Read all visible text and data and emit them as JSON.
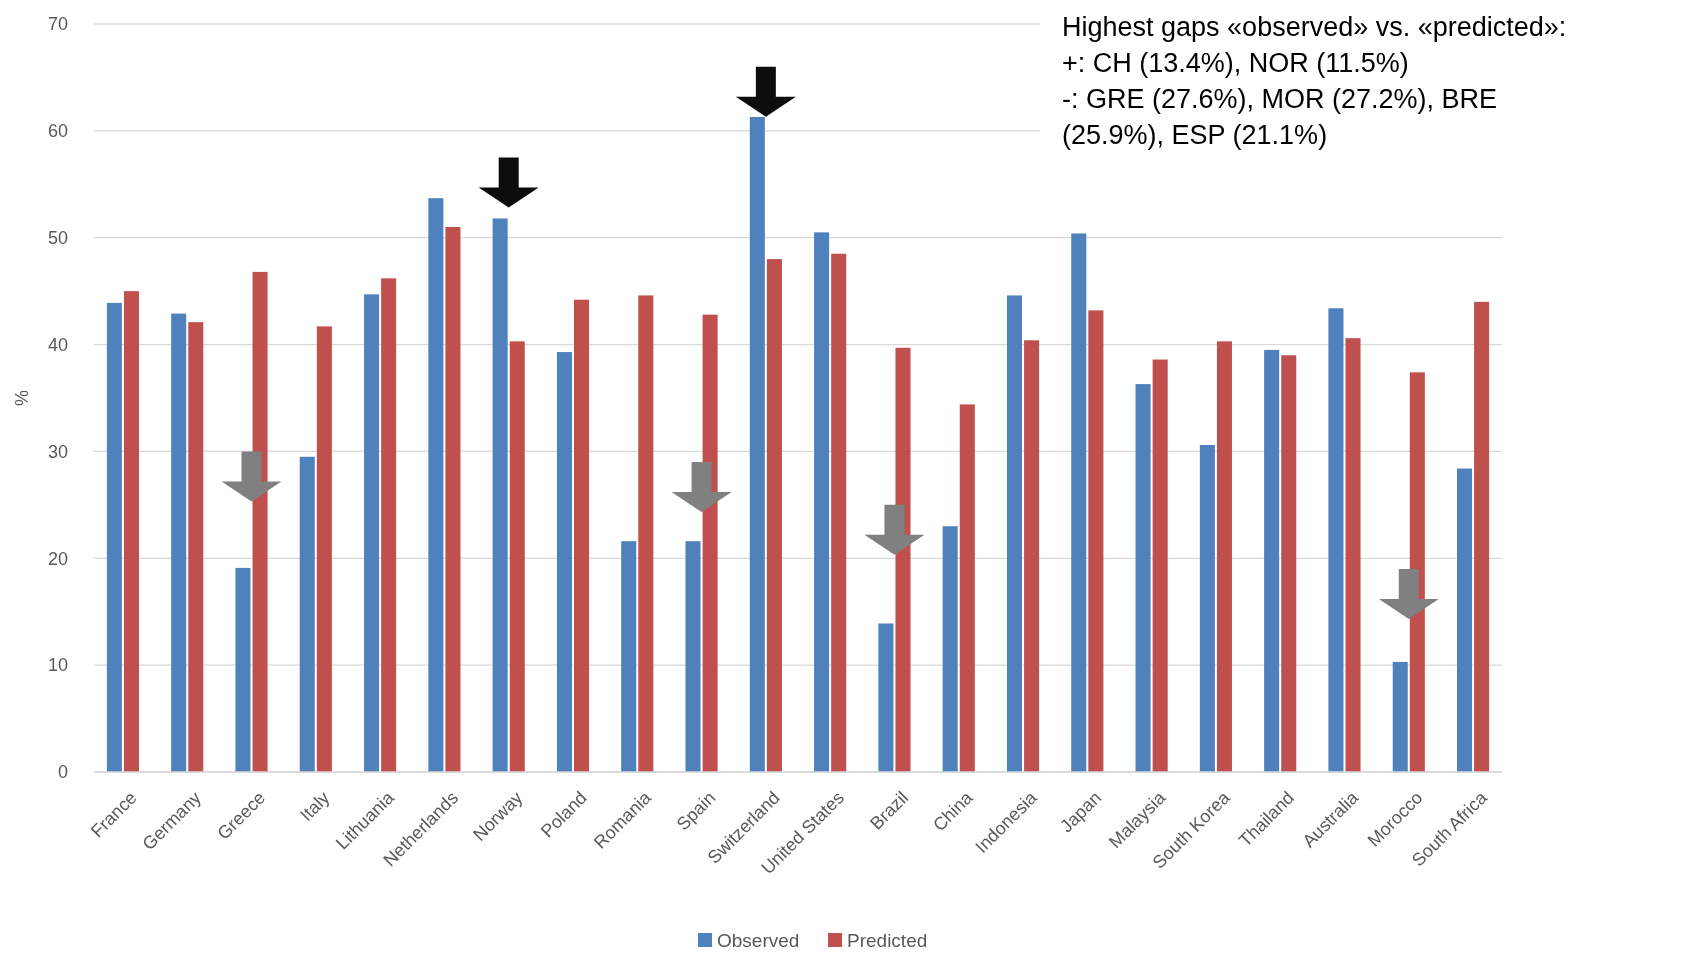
{
  "chart_data": {
    "type": "bar",
    "ylabel": "%",
    "categories": [
      "France",
      "Germany",
      "Greece",
      "Italy",
      "Lithuania",
      "Netherlands",
      "Norway",
      "Poland",
      "Romania",
      "Spain",
      "Switzerland",
      "United States",
      "Brazil",
      "China",
      "Indonesia",
      "Japan",
      "Malaysia",
      "South Korea",
      "Thailand",
      "Australia",
      "Morocco",
      "South Africa"
    ],
    "series": [
      {
        "name": "Observed",
        "color": "#4f81bd",
        "values": [
          43.9,
          42.9,
          19.1,
          29.5,
          44.7,
          53.7,
          51.8,
          39.3,
          21.6,
          21.6,
          61.3,
          50.5,
          13.9,
          23.0,
          44.6,
          50.4,
          36.3,
          30.6,
          39.5,
          43.4,
          10.3,
          28.4
        ]
      },
      {
        "name": "Predicted",
        "color": "#c0504d",
        "values": [
          45.0,
          42.1,
          46.8,
          41.7,
          46.2,
          51.0,
          40.3,
          44.2,
          44.6,
          42.8,
          48.0,
          48.5,
          39.7,
          34.4,
          40.4,
          43.2,
          38.6,
          40.3,
          39.0,
          40.6,
          37.4,
          44.0
        ]
      }
    ],
    "ylim": [
      0,
      70
    ],
    "yticks": [
      0,
      10,
      20,
      30,
      40,
      50,
      60,
      70
    ],
    "grid": "y",
    "legend": "bottom",
    "annotations": [
      "Highest gaps «observed» vs. «predicted»:\n+: CH (13.4%), NOR (11.5%)\n-: GRE (27.6%), MOR (27.2%), BRE (25.9%), ESP (21.1%)"
    ]
  }
}
